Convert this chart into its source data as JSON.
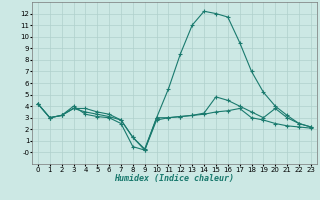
{
  "title": "",
  "xlabel": "Humidex (Indice chaleur)",
  "bg_color": "#cce8e4",
  "grid_color": "#b0d0cc",
  "line_color": "#1a7a6e",
  "xlim": [
    -0.5,
    23.5
  ],
  "ylim": [
    -1.0,
    13.0
  ],
  "xticks": [
    0,
    1,
    2,
    3,
    4,
    5,
    6,
    7,
    8,
    9,
    10,
    11,
    12,
    13,
    14,
    15,
    16,
    17,
    18,
    19,
    20,
    21,
    22,
    23
  ],
  "yticks": [
    0,
    1,
    2,
    3,
    4,
    5,
    6,
    7,
    8,
    9,
    10,
    11,
    12
  ],
  "lines": [
    {
      "x": [
        0,
        1,
        2,
        3,
        4,
        5,
        6,
        7,
        8,
        9,
        10,
        11,
        12,
        13,
        14,
        15,
        16,
        17,
        18,
        19,
        20,
        21,
        22,
        23
      ],
      "y": [
        4.2,
        3.0,
        3.2,
        4.0,
        3.3,
        3.1,
        3.0,
        2.5,
        0.5,
        0.2,
        3.0,
        5.5,
        8.5,
        11.0,
        12.2,
        12.0,
        11.7,
        9.5,
        7.0,
        5.2,
        4.0,
        3.2,
        2.5,
        2.2
      ]
    },
    {
      "x": [
        0,
        1,
        2,
        3,
        4,
        5,
        6,
        7,
        8,
        9,
        10,
        11,
        12,
        13,
        14,
        15,
        16,
        17,
        18,
        19,
        20,
        21,
        22,
        23
      ],
      "y": [
        4.2,
        3.0,
        3.2,
        3.8,
        3.5,
        3.3,
        3.1,
        2.8,
        1.3,
        0.2,
        2.8,
        3.0,
        3.1,
        3.2,
        3.3,
        3.5,
        3.6,
        3.8,
        3.0,
        2.8,
        2.5,
        2.3,
        2.2,
        2.1
      ]
    },
    {
      "x": [
        0,
        1,
        2,
        3,
        4,
        5,
        6,
        7,
        8,
        9,
        10,
        11,
        12,
        13,
        14,
        15,
        16,
        17,
        18,
        19,
        20,
        21,
        22,
        23
      ],
      "y": [
        4.2,
        3.0,
        3.2,
        3.8,
        3.8,
        3.5,
        3.3,
        2.8,
        1.3,
        0.3,
        3.0,
        3.0,
        3.1,
        3.2,
        3.4,
        4.8,
        4.5,
        4.0,
        3.5,
        3.0,
        3.8,
        3.0,
        2.5,
        2.2
      ]
    }
  ],
  "xlabel_fontsize": 6.0,
  "tick_fontsize": 5.0,
  "linewidth": 0.8,
  "markersize": 3.0
}
